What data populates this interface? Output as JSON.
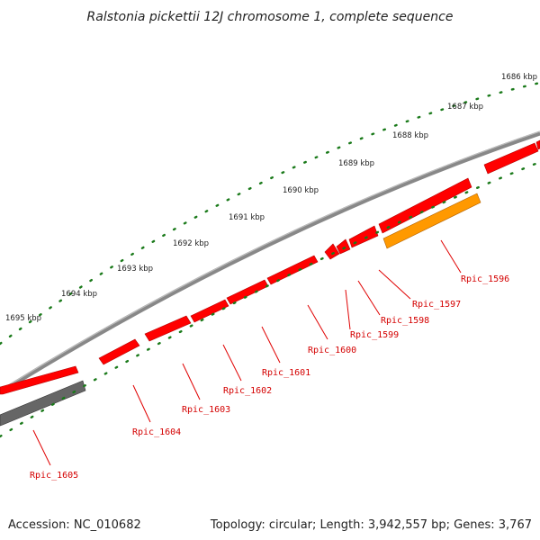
{
  "title": "Ralstonia pickettii 12J chromosome 1, complete sequence",
  "footer": {
    "accession": "Accession: NC_010682",
    "summary": "Topology: circular; Length: 3,942,557 bp; Genes: 3,767"
  },
  "ruler": {
    "labels": [
      "1686 kbp",
      "1687 kbp",
      "1688 kbp",
      "1689 kbp",
      "1690 kbp",
      "1691 kbp",
      "1692 kbp",
      "1693 kbp",
      "1694 kbp",
      "1695 kbp"
    ]
  },
  "genes": [
    {
      "name": "Rpic_1596",
      "color": "#ff9900"
    },
    {
      "name": "Rpic_1597",
      "color": "#ff0000"
    },
    {
      "name": "Rpic_1598",
      "color": "#ff0000"
    },
    {
      "name": "Rpic_1599",
      "color": "#ff0000"
    },
    {
      "name": "Rpic_1600",
      "color": "#ff0000"
    },
    {
      "name": "Rpic_1601",
      "color": "#ff0000"
    },
    {
      "name": "Rpic_1602",
      "color": "#ff0000"
    },
    {
      "name": "Rpic_1603",
      "color": "#ff0000"
    },
    {
      "name": "Rpic_1604",
      "color": "#ff0000"
    },
    {
      "name": "Rpic_1605",
      "color": "#ff0000"
    }
  ],
  "colors": {
    "backbone": "#808080",
    "gene_forward": "#ff0000",
    "gene_highlight": "#ff9900",
    "gene_gray": "#666666",
    "tick": "#1a7a1a",
    "label": "#d40000"
  }
}
